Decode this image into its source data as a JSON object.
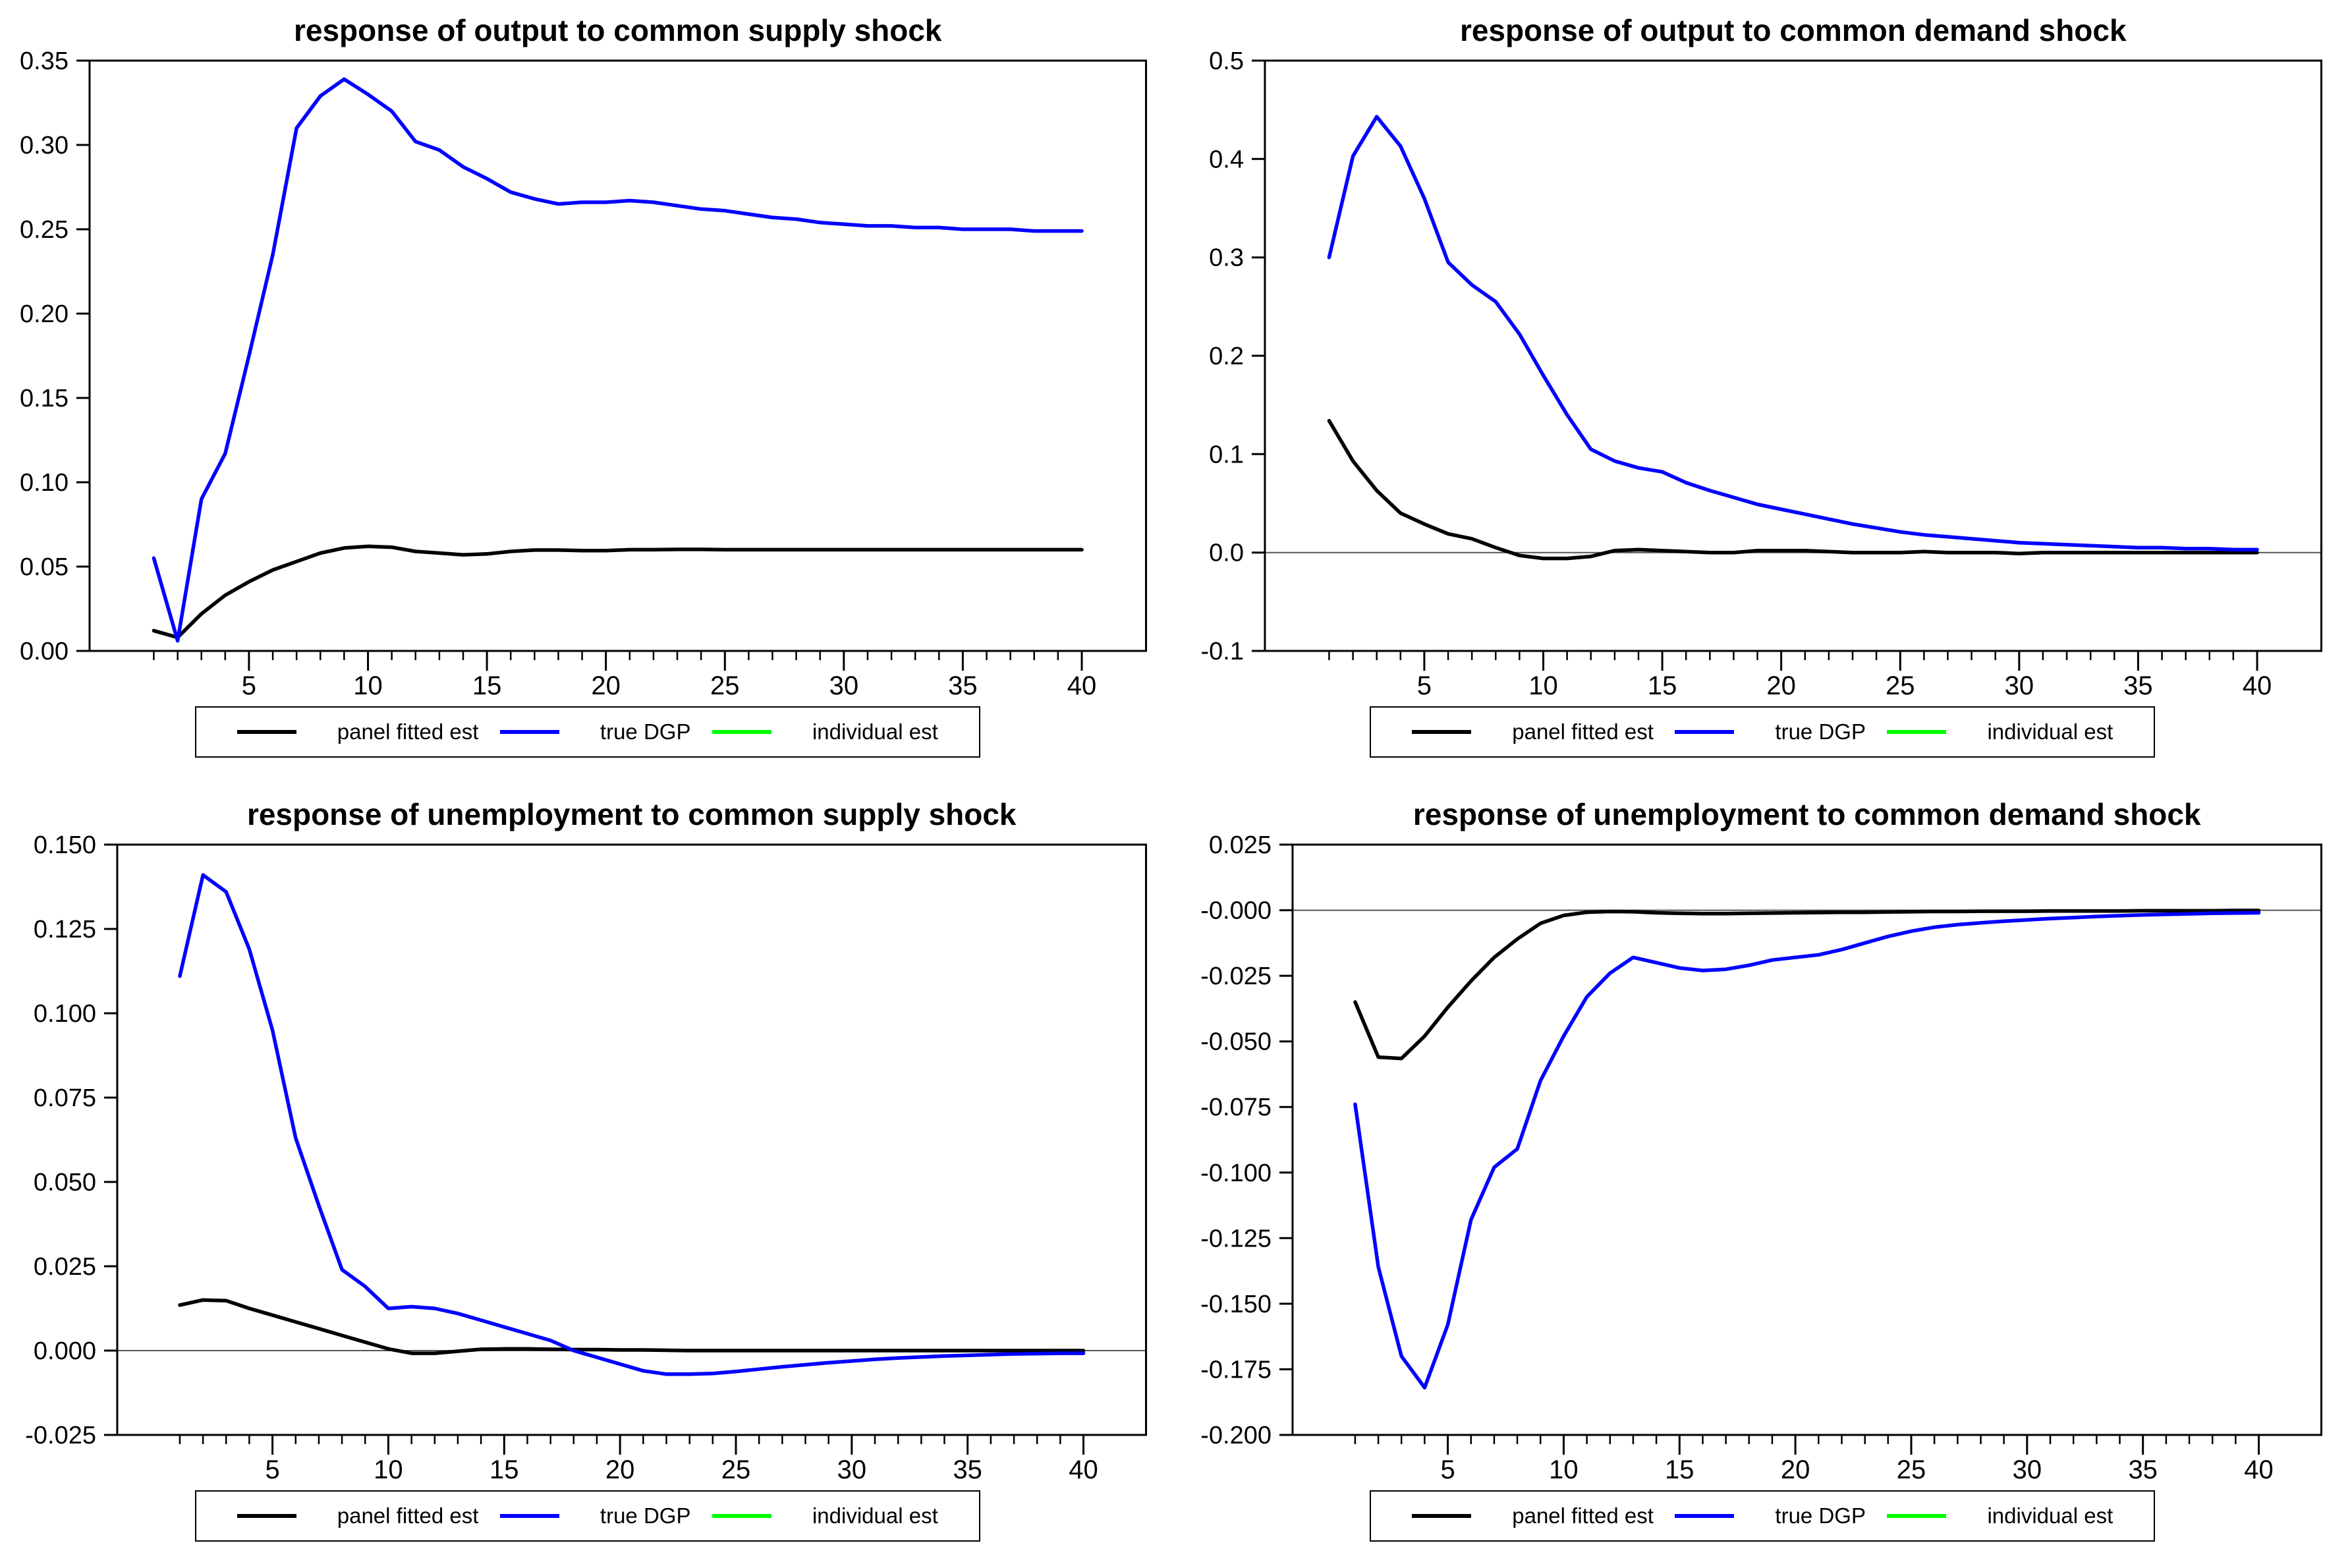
{
  "page": {
    "background": "#ffffff"
  },
  "axis_style": {
    "axis_color": "#000000",
    "zero_line_color": "#555555",
    "tick_label_color": "#000000"
  },
  "legend": {
    "items": [
      {
        "label": "panel fitted est",
        "color": "#000000"
      },
      {
        "label": "true DGP",
        "color": "#0000ff"
      },
      {
        "label": "individual est",
        "color": "#00ff00"
      }
    ]
  },
  "chart_data": [
    {
      "type": "line",
      "title": "response of output to common supply shock",
      "x": {
        "start": 1,
        "end": 40,
        "step": 1
      },
      "x_major_ticks": [
        5,
        10,
        15,
        20,
        25,
        30,
        35,
        40
      ],
      "ylim": [
        0.0,
        0.35
      ],
      "y_ticks": [
        0.35,
        0.3,
        0.25,
        0.2,
        0.15,
        0.1,
        0.05,
        0.0
      ],
      "y_tick_labels": [
        "0.35",
        "0.30",
        "0.25",
        "0.20",
        "0.15",
        "0.10",
        "0.05",
        "0.00"
      ],
      "zero_line": false,
      "grid": false,
      "legend_position": "bottom",
      "series": [
        {
          "name": "panel fitted est",
          "color": "#000000",
          "values": [
            0.012,
            0.008,
            0.022,
            0.033,
            0.041,
            0.048,
            0.053,
            0.058,
            0.061,
            0.062,
            0.0615,
            0.059,
            0.058,
            0.057,
            0.0575,
            0.059,
            0.0598,
            0.0598,
            0.0595,
            0.0595,
            0.06,
            0.06,
            0.0602,
            0.0602,
            0.06,
            0.06,
            0.06,
            0.06,
            0.06,
            0.06,
            0.06,
            0.06,
            0.06,
            0.06,
            0.06,
            0.06,
            0.06,
            0.06,
            0.06,
            0.06
          ]
        },
        {
          "name": "true DGP",
          "color": "#0000ff",
          "values": [
            0.055,
            0.006,
            0.09,
            0.117,
            0.175,
            0.235,
            0.31,
            0.329,
            0.339,
            0.33,
            0.32,
            0.302,
            0.297,
            0.287,
            0.28,
            0.272,
            0.268,
            0.265,
            0.266,
            0.266,
            0.267,
            0.266,
            0.264,
            0.262,
            0.261,
            0.259,
            0.257,
            0.256,
            0.254,
            0.253,
            0.252,
            0.252,
            0.251,
            0.251,
            0.25,
            0.25,
            0.25,
            0.249,
            0.249,
            0.249
          ]
        }
      ]
    },
    {
      "type": "line",
      "title": "response of output to common demand shock",
      "x": {
        "start": 1,
        "end": 40,
        "step": 1
      },
      "x_major_ticks": [
        5,
        10,
        15,
        20,
        25,
        30,
        35,
        40
      ],
      "ylim": [
        -0.1,
        0.5
      ],
      "y_ticks": [
        0.5,
        0.4,
        0.3,
        0.2,
        0.1,
        0.0,
        -0.1
      ],
      "y_tick_labels": [
        "0.5",
        "0.4",
        "0.3",
        "0.2",
        "0.1",
        "0.0",
        "-0.1"
      ],
      "zero_line": true,
      "grid": false,
      "legend_position": "bottom",
      "series": [
        {
          "name": "panel fitted est",
          "color": "#000000",
          "values": [
            0.134,
            0.093,
            0.063,
            0.04,
            0.029,
            0.019,
            0.014,
            0.005,
            -0.003,
            -0.006,
            -0.006,
            -0.004,
            0.002,
            0.003,
            0.002,
            0.001,
            0.0,
            0.0,
            0.002,
            0.002,
            0.002,
            0.001,
            0.0,
            0.0,
            0.0,
            0.001,
            0.0,
            0.0,
            0.0,
            -0.001,
            0.0,
            0.0,
            0.0,
            0.0,
            0.0,
            0.0,
            0.0,
            0.0,
            0.0,
            0.0
          ]
        },
        {
          "name": "true DGP",
          "color": "#0000ff",
          "values": [
            0.3,
            0.403,
            0.443,
            0.413,
            0.36,
            0.295,
            0.272,
            0.255,
            0.222,
            0.18,
            0.14,
            0.105,
            0.093,
            0.086,
            0.082,
            0.071,
            0.063,
            0.056,
            0.049,
            0.044,
            0.039,
            0.034,
            0.029,
            0.025,
            0.021,
            0.018,
            0.016,
            0.014,
            0.012,
            0.01,
            0.009,
            0.008,
            0.007,
            0.006,
            0.005,
            0.005,
            0.004,
            0.004,
            0.003,
            0.003
          ]
        }
      ]
    },
    {
      "type": "line",
      "title": "response of unemployment to common supply shock",
      "x": {
        "start": 1,
        "end": 40,
        "step": 1
      },
      "x_major_ticks": [
        5,
        10,
        15,
        20,
        25,
        30,
        35,
        40
      ],
      "ylim": [
        -0.025,
        0.15
      ],
      "y_ticks": [
        0.15,
        0.125,
        0.1,
        0.075,
        0.05,
        0.025,
        0.0,
        -0.025
      ],
      "y_tick_labels": [
        "0.150",
        "0.125",
        "0.100",
        "0.075",
        "0.050",
        "0.025",
        "0.000",
        "-0.025"
      ],
      "zero_line": true,
      "grid": false,
      "legend_position": "bottom",
      "series": [
        {
          "name": "panel fitted est",
          "color": "#000000",
          "values": [
            0.0135,
            0.015,
            0.0148,
            0.0125,
            0.0105,
            0.0085,
            0.0065,
            0.0045,
            0.0025,
            0.0005,
            -0.0008,
            -0.0008,
            -0.0002,
            0.0004,
            0.0005,
            0.0005,
            0.0004,
            0.0003,
            0.0003,
            0.0002,
            0.0002,
            0.0001,
            0.0,
            0.0,
            0.0,
            0.0,
            0.0,
            0.0,
            0.0,
            0.0,
            0.0,
            0.0,
            0.0,
            0.0,
            0.0,
            0.0,
            0.0,
            0.0,
            0.0,
            0.0
          ]
        },
        {
          "name": "true DGP",
          "color": "#0000ff",
          "values": [
            0.111,
            0.141,
            0.136,
            0.119,
            0.095,
            0.063,
            0.043,
            0.024,
            0.019,
            0.0125,
            0.013,
            0.0125,
            0.011,
            0.009,
            0.007,
            0.005,
            0.003,
            0.0,
            -0.002,
            -0.004,
            -0.006,
            -0.007,
            -0.007,
            -0.0068,
            -0.0062,
            -0.0055,
            -0.0048,
            -0.0042,
            -0.0036,
            -0.0031,
            -0.0026,
            -0.0022,
            -0.0019,
            -0.0016,
            -0.0014,
            -0.0012,
            -0.001,
            -0.0009,
            -0.0008,
            -0.0008
          ]
        }
      ]
    },
    {
      "type": "line",
      "title": "response of unemployment to common demand shock",
      "x": {
        "start": 1,
        "end": 40,
        "step": 1
      },
      "x_major_ticks": [
        5,
        10,
        15,
        20,
        25,
        30,
        35,
        40
      ],
      "ylim": [
        -0.2,
        0.025
      ],
      "y_ticks": [
        0.025,
        0.0,
        -0.025,
        -0.05,
        -0.075,
        -0.1,
        -0.125,
        -0.15,
        -0.175,
        -0.2
      ],
      "y_tick_labels": [
        "0.025",
        "-0.000",
        "-0.025",
        "-0.050",
        "-0.075",
        "-0.100",
        "-0.125",
        "-0.150",
        "-0.175",
        "-0.200"
      ],
      "zero_line": true,
      "grid": false,
      "legend_position": "bottom",
      "series": [
        {
          "name": "panel fitted est",
          "color": "#000000",
          "values": [
            -0.035,
            -0.056,
            -0.0565,
            -0.048,
            -0.037,
            -0.027,
            -0.018,
            -0.011,
            -0.005,
            -0.002,
            -0.0008,
            -0.0005,
            -0.0006,
            -0.001,
            -0.0012,
            -0.0013,
            -0.0013,
            -0.0012,
            -0.0011,
            -0.001,
            -0.0009,
            -0.0008,
            -0.0008,
            -0.0007,
            -0.0006,
            -0.0005,
            -0.0005,
            -0.0004,
            -0.0004,
            -0.0004,
            -0.0003,
            -0.0003,
            -0.0003,
            -0.0003,
            -0.0002,
            -0.0002,
            -0.0002,
            -0.0002,
            -0.0001,
            -0.0001
          ]
        },
        {
          "name": "true DGP",
          "color": "#0000ff",
          "values": [
            -0.074,
            -0.136,
            -0.17,
            -0.182,
            -0.158,
            -0.118,
            -0.098,
            -0.091,
            -0.065,
            -0.048,
            -0.033,
            -0.024,
            -0.018,
            -0.02,
            -0.022,
            -0.023,
            -0.0225,
            -0.021,
            -0.019,
            -0.018,
            -0.017,
            -0.015,
            -0.0125,
            -0.01,
            -0.008,
            -0.0065,
            -0.0055,
            -0.0048,
            -0.0042,
            -0.0037,
            -0.0032,
            -0.0028,
            -0.0024,
            -0.0021,
            -0.0018,
            -0.0016,
            -0.0014,
            -0.0012,
            -0.0011,
            -0.001
          ]
        }
      ]
    }
  ]
}
